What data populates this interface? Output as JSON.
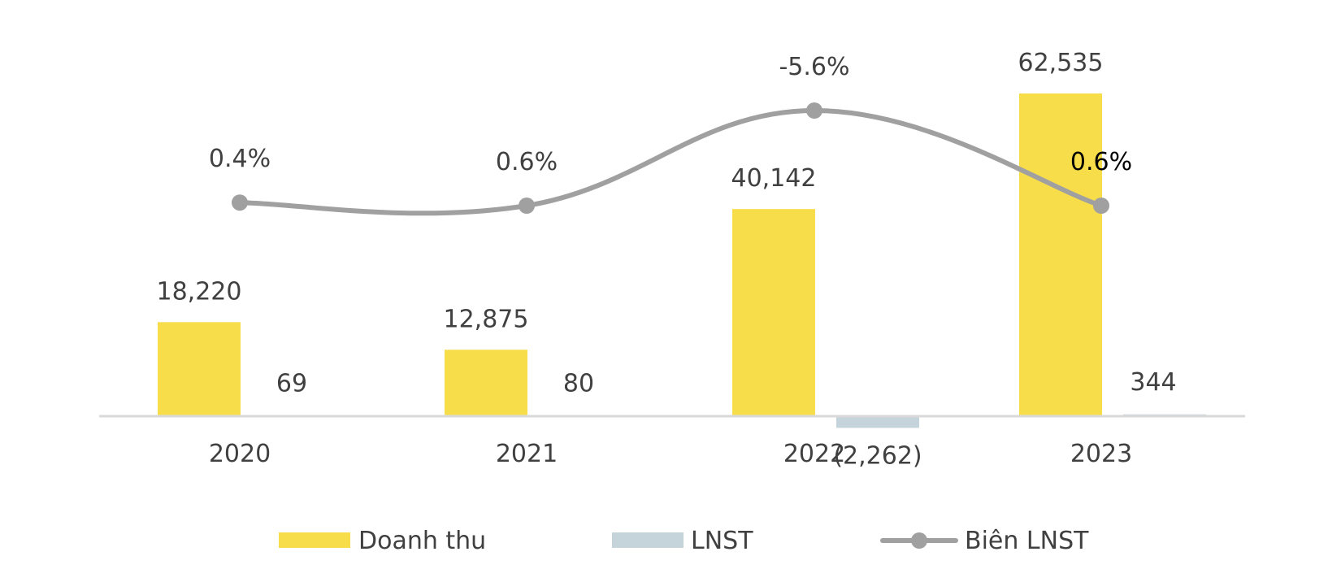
{
  "chart_data": {
    "type": "bar",
    "categories": [
      "2020",
      "2021",
      "2022",
      "2023"
    ],
    "series": [
      {
        "name": "Doanh thu",
        "type": "bar",
        "axis": "left",
        "values": [
          18220,
          12875,
          40142,
          62535
        ],
        "labels": [
          "18,220",
          "12,875",
          "40,142",
          "62,535"
        ],
        "color": "#F8DD4A"
      },
      {
        "name": "LNST",
        "type": "bar",
        "axis": "left",
        "values": [
          69,
          80,
          -2262,
          344
        ],
        "labels": [
          "69",
          "80",
          "(2,262)",
          "344"
        ],
        "color": "#C5D3DA"
      },
      {
        "name": "Biên LNST",
        "type": "line",
        "axis": "right",
        "values": [
          0.4,
          0.6,
          -5.6,
          0.6
        ],
        "labels": [
          "0.4%",
          "0.6%",
          "-5.6%",
          "0.6%"
        ],
        "color": "#A0A0A0"
      }
    ],
    "title": "",
    "xlabel": "",
    "ylabel": "",
    "grid": false,
    "legend_position": "bottom",
    "axis_line_color": "#D9D9D9"
  }
}
